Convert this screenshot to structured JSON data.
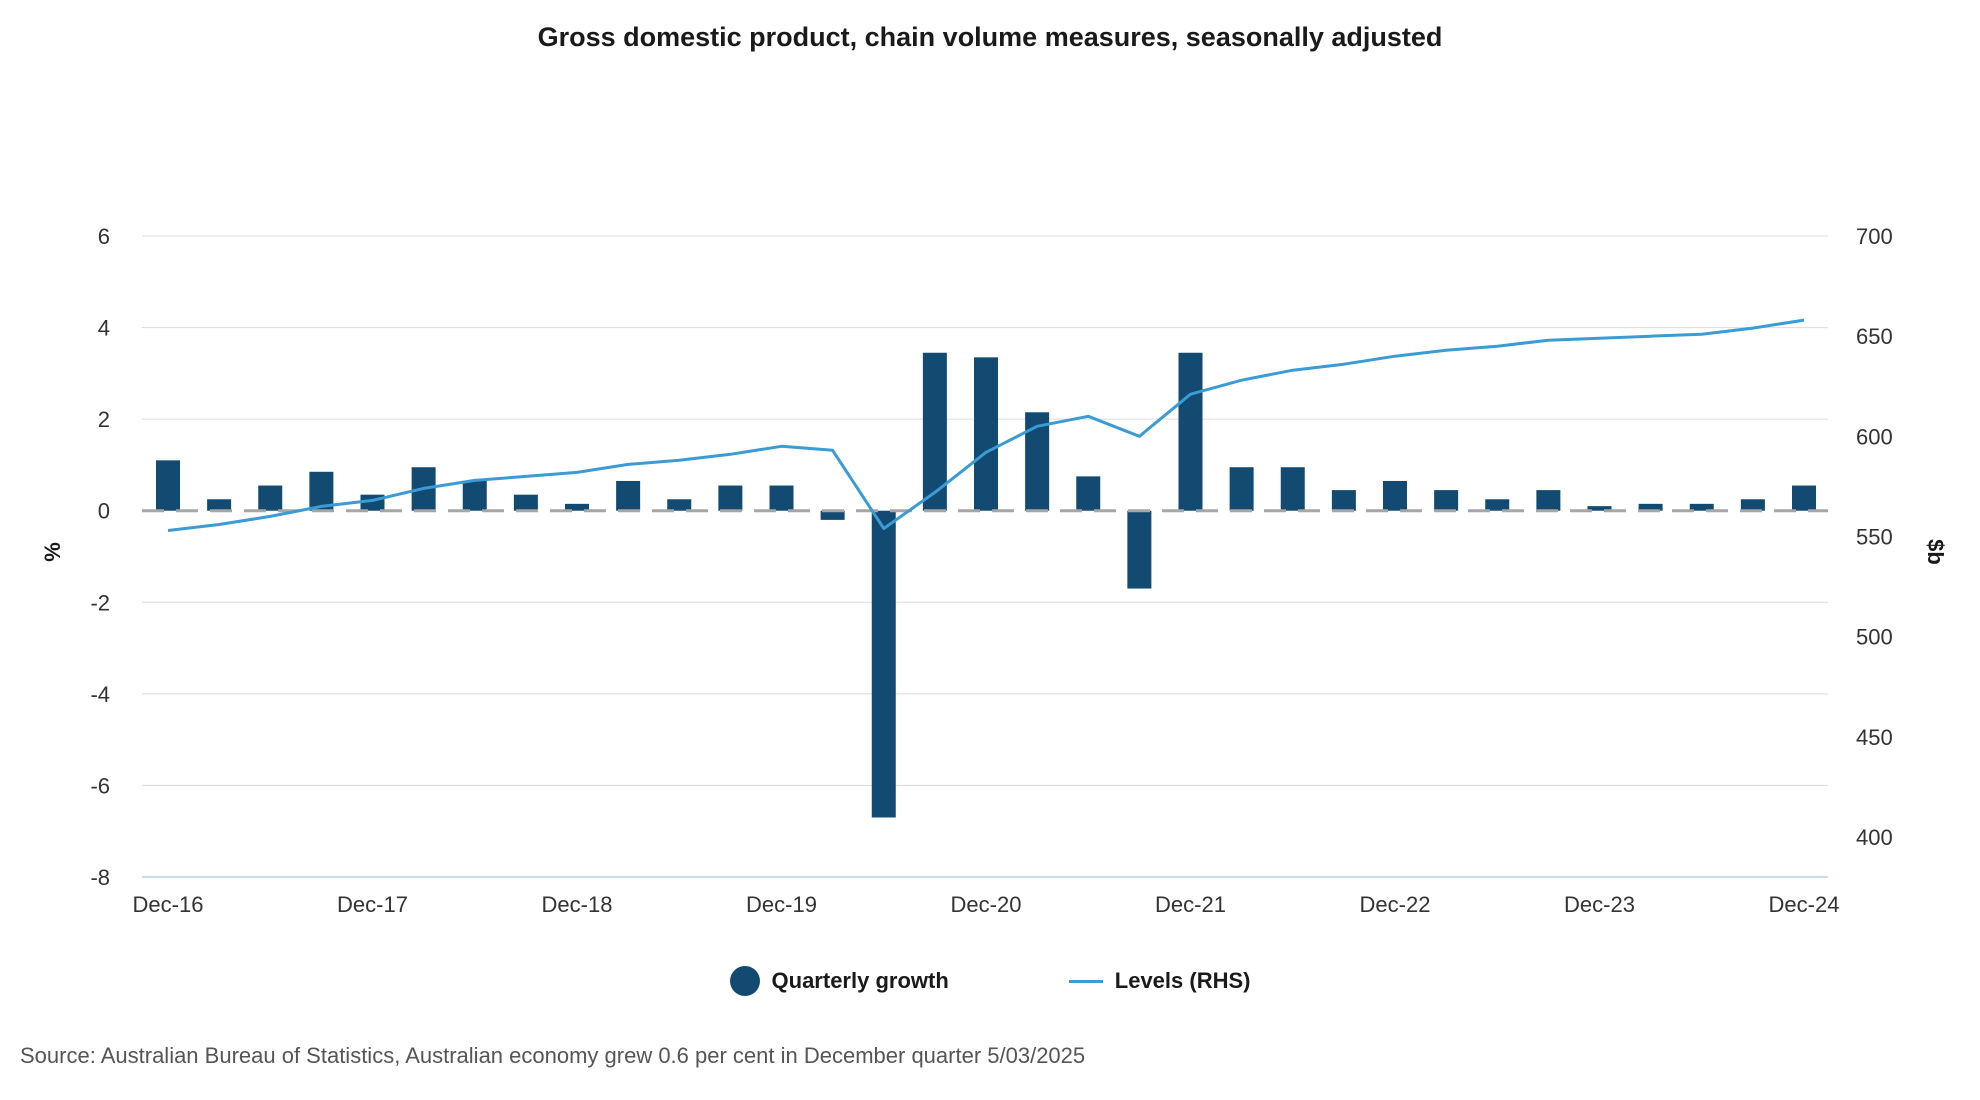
{
  "chart_data": {
    "type": "bar",
    "title": "Gross domestic product, chain volume measures, seasonally adjusted",
    "y_left_label": "%",
    "y_right_label": "$b",
    "y_left_ticks": [
      "6",
      "4",
      "2",
      "0",
      "-2",
      "-4",
      "-6",
      "-8"
    ],
    "y_right_ticks": [
      "700",
      "650",
      "600",
      "550",
      "500",
      "450",
      "400"
    ],
    "ylim_left": [
      -8,
      6
    ],
    "ylim_right": [
      380,
      700
    ],
    "x_tick_labels": [
      "Dec-16",
      "Dec-17",
      "Dec-18",
      "Dec-19",
      "Dec-20",
      "Dec-21",
      "Dec-22",
      "Dec-23",
      "Dec-24"
    ],
    "categories": [
      "Dec-16",
      "Mar-17",
      "Jun-17",
      "Sep-17",
      "Dec-17",
      "Mar-18",
      "Jun-18",
      "Sep-18",
      "Dec-18",
      "Mar-19",
      "Jun-19",
      "Sep-19",
      "Dec-19",
      "Mar-20",
      "Jun-20",
      "Sep-20",
      "Dec-20",
      "Mar-21",
      "Jun-21",
      "Sep-21",
      "Dec-21",
      "Mar-22",
      "Jun-22",
      "Sep-22",
      "Dec-22",
      "Mar-23",
      "Jun-23",
      "Sep-23",
      "Dec-23",
      "Mar-24",
      "Jun-24",
      "Sep-24",
      "Dec-24"
    ],
    "series": [
      {
        "name": "Quarterly growth",
        "type": "bar",
        "axis": "left",
        "color": "#124a72",
        "values": [
          1.1,
          0.25,
          0.55,
          0.85,
          0.35,
          0.95,
          0.65,
          0.35,
          0.15,
          0.65,
          0.25,
          0.55,
          0.55,
          -0.2,
          -6.7,
          3.45,
          3.35,
          2.15,
          0.75,
          -1.7,
          3.45,
          0.95,
          0.95,
          0.45,
          0.65,
          0.45,
          0.25,
          0.45,
          0.1,
          0.15,
          0.15,
          0.25,
          0.55
        ]
      },
      {
        "name": "Levels (RHS)",
        "type": "line",
        "axis": "right",
        "color": "#3a9bd5",
        "values": [
          553,
          556,
          560,
          565,
          568,
          574,
          578,
          580,
          582,
          586,
          588,
          591,
          595,
          593,
          554,
          572,
          592,
          605,
          610,
          600,
          621,
          628,
          633,
          636,
          640,
          643,
          645,
          648,
          649,
          650,
          651,
          654,
          658
        ]
      }
    ],
    "grid": true,
    "legend_position": "bottom-center"
  },
  "source_text": "Source: Australian Bureau of Statistics, Australian economy grew 0.6 per cent in December quarter 5/03/2025"
}
